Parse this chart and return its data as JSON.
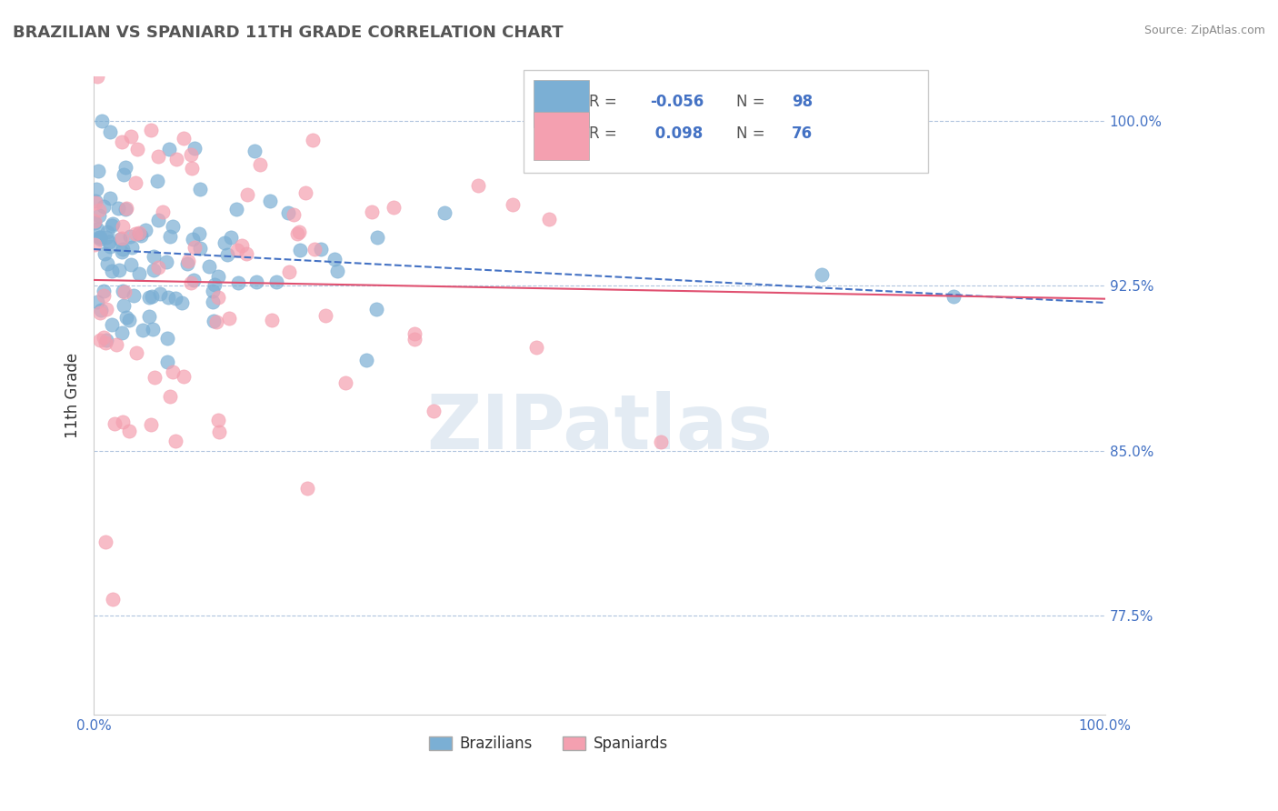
{
  "title": "BRAZILIAN VS SPANIARD 11TH GRADE CORRELATION CHART",
  "source": "Source: ZipAtlas.com",
  "ylabel": "11th Grade",
  "xlabel": "",
  "xlim": [
    0.0,
    100.0
  ],
  "ylim": [
    73.0,
    102.0
  ],
  "yticks": [
    77.5,
    85.0,
    92.5,
    100.0
  ],
  "xticks": [
    0.0,
    100.0
  ],
  "blue_color": "#7bafd4",
  "pink_color": "#f4a0b0",
  "blue_R": -0.056,
  "blue_N": 98,
  "pink_R": 0.098,
  "pink_N": 76,
  "blue_seed": 42,
  "pink_seed": 99,
  "watermark": "ZIPatlas",
  "watermark_color": "#c8d8e8",
  "legend_blue_label": "Brazilians",
  "legend_pink_label": "Spaniards",
  "title_fontsize": 13,
  "axis_label_color": "#4472c4",
  "tick_color": "#4472c4",
  "grid_color": "#b0c4de",
  "trend_blue_color": "#4472c4",
  "trend_pink_color": "#e05070"
}
